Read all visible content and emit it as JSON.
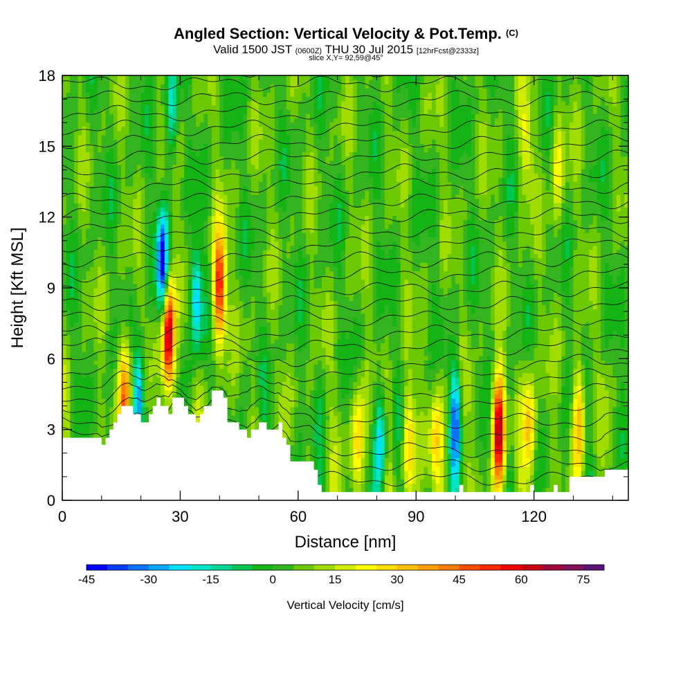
{
  "header": {
    "title": "Angled Section: Vertical Velocity & Pot.Temp.",
    "title_tag": "(C)",
    "sub_valid": "Valid 1500 JST",
    "sub_utc": "(0600Z)",
    "sub_date": "THU 30 Jul 2015",
    "sub_fcst": "[12hrFcst@2333z]",
    "slice": "slice X,Y= 92,59@45°"
  },
  "chart_data": {
    "type": "heatmap",
    "xlabel": "Distance [nm]",
    "ylabel": "Height [Kft MSL]",
    "xlim": [
      0,
      144
    ],
    "ylim": [
      0,
      18
    ],
    "x_ticks": [
      0,
      30,
      60,
      90,
      120
    ],
    "x_tick_labels": [
      "0",
      "30",
      "60",
      "90",
      "120"
    ],
    "y_ticks": [
      0,
      3,
      6,
      9,
      12,
      15,
      18
    ],
    "y_tick_labels": [
      "0",
      "3",
      "6",
      "9",
      "12",
      "15",
      "18"
    ],
    "colorbar": {
      "title": "Vertical Velocity [cm/s]",
      "min": -45,
      "max": 80,
      "step": 5,
      "tick_values": [
        -45,
        -30,
        -15,
        0,
        15,
        30,
        45,
        60,
        75
      ],
      "tick_labels": [
        "-45",
        "-30",
        "-15",
        "0",
        "15",
        "30",
        "45",
        "60",
        "75"
      ],
      "colors": [
        "#0000ff",
        "#0a3cff",
        "#0b72ff",
        "#00a6ff",
        "#00e0ff",
        "#00e6c8",
        "#00d696",
        "#00c450",
        "#14b414",
        "#34b41e",
        "#6cc800",
        "#a0dc00",
        "#d2ec00",
        "#ffff00",
        "#ffe000",
        "#ffc000",
        "#ffa000",
        "#ff7c00",
        "#ff5000",
        "#ff2800",
        "#f00000",
        "#c80014",
        "#a00a3c",
        "#82145a",
        "#5a1478"
      ]
    },
    "terrain_kft": [
      [
        0,
        2.65
      ],
      [
        10,
        2.65
      ],
      [
        10,
        2.35
      ],
      [
        11,
        2.35
      ],
      [
        11,
        2.65
      ],
      [
        12,
        2.65
      ],
      [
        12,
        3.0
      ],
      [
        13,
        3.0
      ],
      [
        13,
        3.3
      ],
      [
        14,
        3.3
      ],
      [
        14,
        3.65
      ],
      [
        15,
        3.65
      ],
      [
        15,
        4.0
      ],
      [
        18,
        4.0
      ],
      [
        18,
        3.65
      ],
      [
        20,
        3.65
      ],
      [
        20,
        3.3
      ],
      [
        22,
        3.3
      ],
      [
        22,
        3.65
      ],
      [
        23,
        3.65
      ],
      [
        23,
        4.0
      ],
      [
        24,
        4.0
      ],
      [
        24,
        4.35
      ],
      [
        25,
        4.35
      ],
      [
        25,
        4.0
      ],
      [
        27,
        4.0
      ],
      [
        27,
        3.65
      ],
      [
        28,
        3.65
      ],
      [
        28,
        4.35
      ],
      [
        31,
        4.35
      ],
      [
        31,
        4.0
      ],
      [
        32,
        4.0
      ],
      [
        32,
        3.65
      ],
      [
        34,
        3.65
      ],
      [
        34,
        3.3
      ],
      [
        35,
        3.3
      ],
      [
        35,
        3.65
      ],
      [
        36,
        3.65
      ],
      [
        36,
        4.0
      ],
      [
        38,
        4.0
      ],
      [
        38,
        4.65
      ],
      [
        41,
        4.65
      ],
      [
        41,
        4.35
      ],
      [
        42,
        4.35
      ],
      [
        42,
        3.3
      ],
      [
        45,
        3.3
      ],
      [
        45,
        3.0
      ],
      [
        47,
        3.0
      ],
      [
        47,
        2.65
      ],
      [
        48,
        2.65
      ],
      [
        48,
        3.0
      ],
      [
        50,
        3.0
      ],
      [
        50,
        3.3
      ],
      [
        52,
        3.3
      ],
      [
        52,
        3.0
      ],
      [
        55,
        3.0
      ],
      [
        55,
        3.3
      ],
      [
        56,
        3.3
      ],
      [
        56,
        2.65
      ],
      [
        57,
        2.65
      ],
      [
        57,
        2.35
      ],
      [
        58,
        2.35
      ],
      [
        58,
        1.65
      ],
      [
        59,
        1.65
      ],
      [
        59,
        1.65
      ],
      [
        64,
        1.65
      ],
      [
        64,
        1.3
      ],
      [
        65,
        1.3
      ],
      [
        65,
        0.65
      ],
      [
        66,
        0.65
      ],
      [
        66,
        0.35
      ],
      [
        101,
        0.35
      ],
      [
        101,
        0.65
      ],
      [
        102,
        0.65
      ],
      [
        102,
        0.35
      ],
      [
        119,
        0.35
      ],
      [
        119,
        0.65
      ],
      [
        120,
        0.65
      ],
      [
        120,
        0.35
      ],
      [
        125,
        0.35
      ],
      [
        125,
        0.65
      ],
      [
        126,
        0.65
      ],
      [
        126,
        0.35
      ],
      [
        129,
        0.35
      ],
      [
        129,
        1.0
      ],
      [
        138,
        1.0
      ],
      [
        138,
        1.3
      ],
      [
        144,
        1.3
      ]
    ],
    "updrafts": [
      {
        "x": 27.0,
        "z": 7.0,
        "max_cm_s": 72
      },
      {
        "x": 40.0,
        "z": 9.0,
        "max_cm_s": 58
      },
      {
        "x": 111.0,
        "z": 3.0,
        "max_cm_s": 65
      },
      {
        "x": 16.0,
        "z": 4.5,
        "max_cm_s": 45
      },
      {
        "x": 75.0,
        "z": 2.5,
        "max_cm_s": 30
      },
      {
        "x": 88.0,
        "z": 2.5,
        "max_cm_s": 32
      },
      {
        "x": 95.0,
        "z": 2.5,
        "max_cm_s": 28
      },
      {
        "x": 119.0,
        "z": 3.0,
        "max_cm_s": 35
      },
      {
        "x": 131.5,
        "z": 3.5,
        "max_cm_s": 32
      },
      {
        "x": 126.0,
        "z": 14.0,
        "max_cm_s": 22
      },
      {
        "x": 118.0,
        "z": 15.0,
        "max_cm_s": 20
      }
    ],
    "downdrafts": [
      {
        "x": 25.5,
        "z": 10.0,
        "min_cm_s": -45
      },
      {
        "x": 34.0,
        "z": 8.5,
        "min_cm_s": -30
      },
      {
        "x": 100.0,
        "z": 3.5,
        "min_cm_s": -30
      },
      {
        "x": 81.0,
        "z": 2.5,
        "min_cm_s": -22
      },
      {
        "x": 19.5,
        "z": 4.5,
        "min_cm_s": -30
      },
      {
        "x": 28.0,
        "z": 16.5,
        "min_cm_s": -20
      }
    ]
  }
}
